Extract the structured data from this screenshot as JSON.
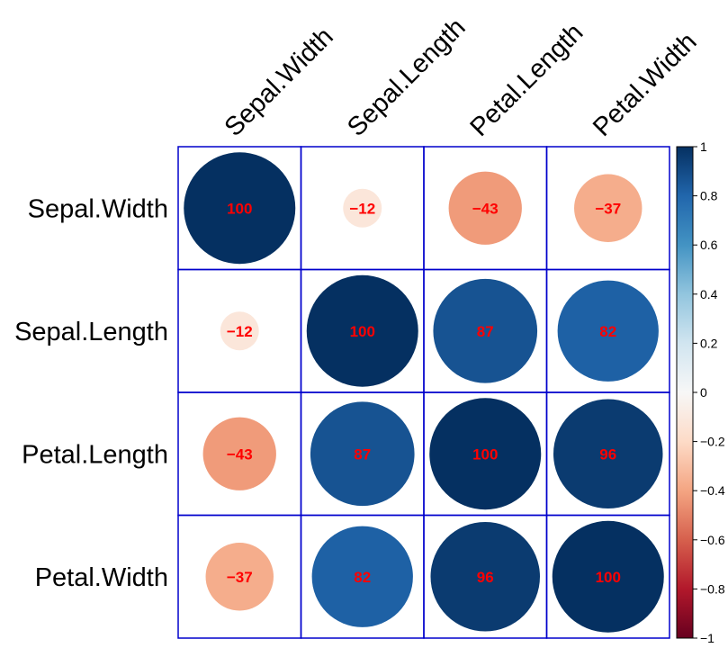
{
  "chart_data": {
    "type": "heatmap",
    "variables": [
      "Sepal.Width",
      "Sepal.Length",
      "Petal.Length",
      "Petal.Width"
    ],
    "matrix": [
      [
        1.0,
        -0.12,
        -0.43,
        -0.37
      ],
      [
        -0.12,
        1.0,
        0.87,
        0.82
      ],
      [
        -0.43,
        0.87,
        1.0,
        0.96
      ],
      [
        -0.37,
        0.82,
        0.96,
        1.0
      ]
    ],
    "cell_labels": [
      [
        "100",
        "-12",
        "-43",
        "-37"
      ],
      [
        "-12",
        "100",
        "87",
        "82"
      ],
      [
        "-43",
        "87",
        "100",
        "96"
      ],
      [
        "-37",
        "82",
        "96",
        "100"
      ]
    ],
    "color_scale": {
      "range": [
        -1,
        1
      ],
      "ticks": [
        "1",
        "0.8",
        "0.6",
        "0.4",
        "0.2",
        "0",
        "-0.2",
        "-0.4",
        "-0.6",
        "-0.8",
        "-1"
      ],
      "legend_placement": "right"
    },
    "colors": {
      "grid": "#0000cc",
      "value_text": "#ff0000",
      "scale_stops": [
        "#67001f",
        "#b2182b",
        "#d6604d",
        "#f4a582",
        "#fddbc7",
        "#f7f7f7",
        "#d1e5f0",
        "#92c5de",
        "#4393c3",
        "#2166ac",
        "#053061"
      ]
    }
  }
}
